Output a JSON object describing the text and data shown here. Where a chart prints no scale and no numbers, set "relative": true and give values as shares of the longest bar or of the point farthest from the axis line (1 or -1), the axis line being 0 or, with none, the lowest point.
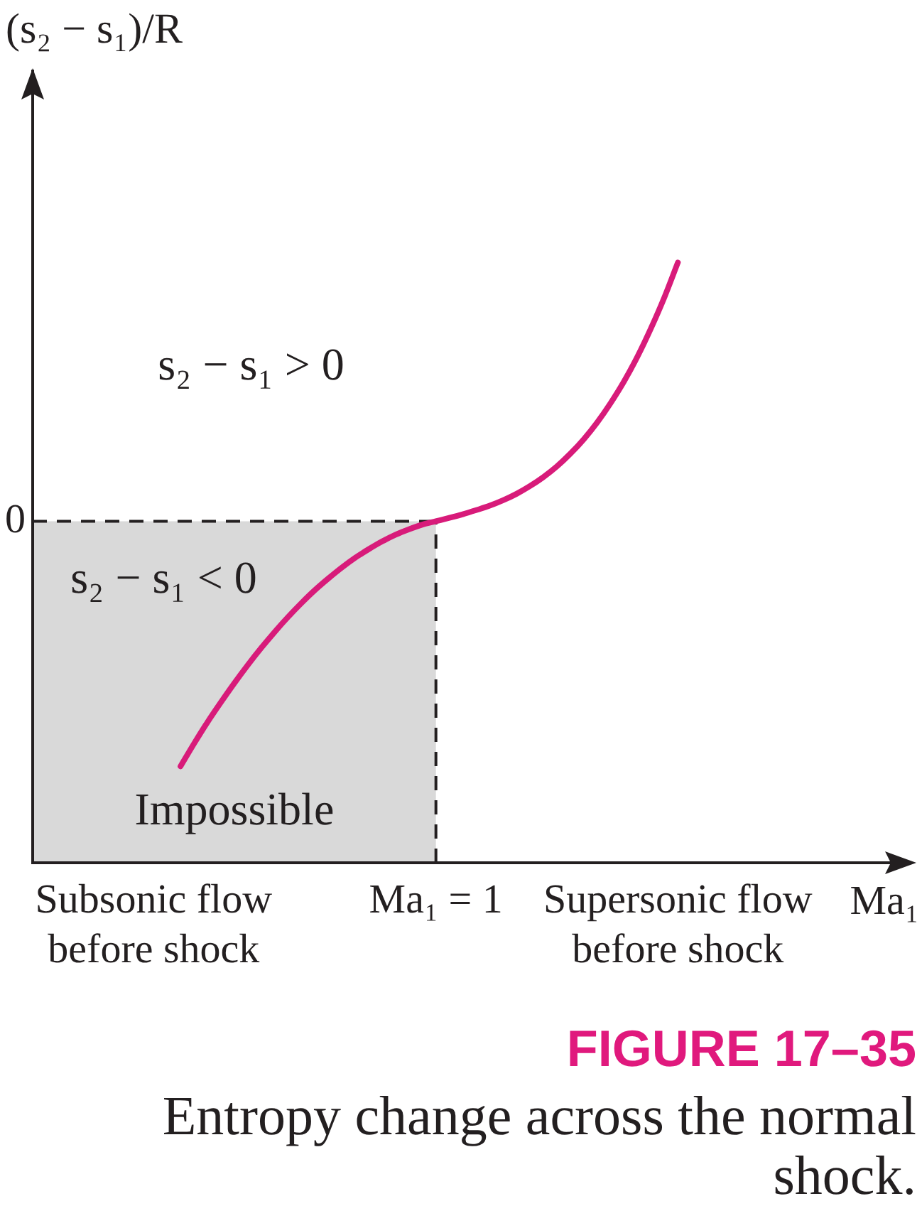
{
  "chart_data": {
    "type": "line",
    "title": "FIGURE 17–35",
    "subtitle": "Entropy change across the normal shock.",
    "xlabel": "Ma₁",
    "ylabel": "(s₂ − s₁)/R",
    "categories": [
      null,
      null,
      null,
      null,
      null,
      null,
      null,
      null,
      null,
      "Subsonic flow before shock",
      null,
      null,
      null,
      null,
      null,
      null,
      null,
      null,
      null,
      null,
      null,
      null,
      null,
      null,
      null,
      null,
      null,
      null,
      null,
      null,
      "Ma₁ = 1",
      null,
      null,
      null,
      null,
      null,
      null,
      null,
      null,
      null,
      null,
      null,
      null,
      null,
      null,
      null,
      null,
      null,
      "Supersonic flow before shock",
      null,
      null,
      null,
      null,
      null,
      null,
      null,
      null,
      null,
      null,
      null,
      null,
      null,
      null,
      null,
      null,
      null
    ],
    "values": [
      null,
      null,
      null,
      null,
      null,
      null,
      null,
      null,
      null,
      null,
      null,
      -0.947,
      -0.86,
      -0.777,
      -0.7,
      -0.626,
      -0.556,
      -0.49,
      -0.428,
      -0.37,
      -0.316,
      -0.266,
      -0.221,
      -0.179,
      -0.141,
      -0.108,
      -0.078,
      -0.052,
      -0.031,
      -0.013,
      0,
      0.013,
      0.027,
      0.043,
      0.06,
      0.081,
      0.106,
      0.136,
      0.171,
      0.212,
      0.261,
      0.317,
      0.382,
      0.457,
      0.541,
      0.637,
      0.746,
      0.866,
      1,
      null,
      null,
      null,
      null,
      null,
      null,
      null,
      null,
      null,
      null,
      null,
      null,
      null,
      null,
      null,
      null,
      null
    ],
    "color": "#d81b7a",
    "relative": true,
    "marker": "none",
    "ref_lines": [
      {
        "axis": "y",
        "value": 0,
        "label": "0",
        "line_style": "dashed",
        "color": "#231f20"
      },
      {
        "axis": "x",
        "value": "Ma₁ = 1",
        "line_style": "dashed",
        "color": "#231f20"
      }
    ],
    "bands": [
      {
        "axis": "y",
        "from": -1.32,
        "to": 0,
        "label": "Impossible",
        "color": "#d9d9d9"
      }
    ],
    "annotations": [
      "s₂ − s₁ > 0",
      "s₂ − s₁ < 0"
    ]
  }
}
